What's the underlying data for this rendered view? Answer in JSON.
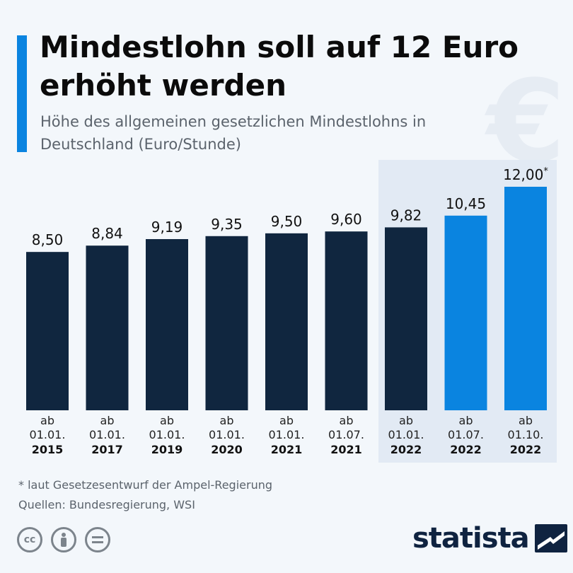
{
  "title": "Mindestlohn soll auf 12 Euro erhöht werden",
  "subtitle": "Höhe des allgemeinen gesetzlichen Mindestlohns in Deutschland (Euro/Stunde)",
  "watermark": "€",
  "colors": {
    "dark": "#10263f",
    "blue": "#0a84e0",
    "highlight": "#e2eaf4",
    "accent": "#0a84e0"
  },
  "chart_data": {
    "type": "bar",
    "categories": [
      {
        "prefix": "ab",
        "date": "01.01.",
        "year": "2015"
      },
      {
        "prefix": "ab",
        "date": "01.01.",
        "year": "2017"
      },
      {
        "prefix": "ab",
        "date": "01.01.",
        "year": "2019"
      },
      {
        "prefix": "ab",
        "date": "01.01.",
        "year": "2020"
      },
      {
        "prefix": "ab",
        "date": "01.01.",
        "year": "2021"
      },
      {
        "prefix": "ab",
        "date": "01.07.",
        "year": "2021"
      },
      {
        "prefix": "ab",
        "date": "01.01.",
        "year": "2022"
      },
      {
        "prefix": "ab",
        "date": "01.07.",
        "year": "2022"
      },
      {
        "prefix": "ab",
        "date": "01.10.",
        "year": "2022"
      }
    ],
    "values": [
      8.5,
      8.84,
      9.19,
      9.35,
      9.5,
      9.6,
      9.82,
      10.45,
      12.0
    ],
    "labels": [
      "8,50",
      "8,84",
      "9,19",
      "9,35",
      "9,50",
      "9,60",
      "9,82",
      "10,45",
      "12,00"
    ],
    "label_marks": [
      "",
      "",
      "",
      "",
      "",
      "",
      "",
      "",
      "*"
    ],
    "bar_color_keys": [
      "dark",
      "dark",
      "dark",
      "dark",
      "dark",
      "dark",
      "dark",
      "blue",
      "blue"
    ],
    "highlight_from_index": 6,
    "ylim": [
      0,
      12.0
    ]
  },
  "footnote": "* laut Gesetzesentwurf der Ampel-Regierung",
  "source": "Quellen: Bundesregierung, WSI",
  "license_icons": [
    "cc-icon",
    "person-icon",
    "equals-icon"
  ],
  "logo": "statista"
}
